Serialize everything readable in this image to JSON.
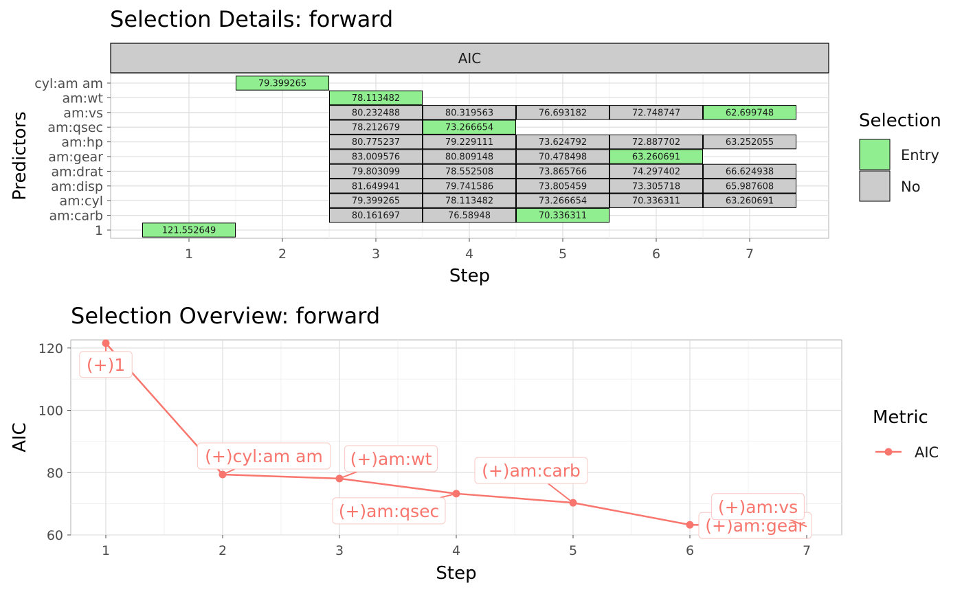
{
  "chart_data": [
    {
      "type": "heatmap",
      "title": "Selection Details: forward",
      "facet_label": "AIC",
      "xlabel": "Step",
      "ylabel": "Predictors",
      "x_ticks": [
        "1",
        "2",
        "3",
        "4",
        "5",
        "6",
        "7"
      ],
      "y_categories": [
        "1",
        "am:carb",
        "am:cyl",
        "am:disp",
        "am:drat",
        "am:gear",
        "am:hp",
        "am:qsec",
        "am:vs",
        "am:wt",
        "cyl:am am"
      ],
      "legend": {
        "title": "Selection",
        "entries": [
          {
            "label": "Entry",
            "color": "#90ee90"
          },
          {
            "label": "No",
            "color": "#cccccc"
          }
        ]
      },
      "tiles": [
        {
          "step": 1,
          "predictor": "1",
          "label": "121.552649",
          "status": "Entry"
        },
        {
          "step": 2,
          "predictor": "cyl:am am",
          "label": "79.399265",
          "status": "Entry"
        },
        {
          "step": 3,
          "predictor": "am:wt",
          "label": "78.113482",
          "status": "Entry"
        },
        {
          "step": 3,
          "predictor": "am:vs",
          "label": "80.232488",
          "status": "No"
        },
        {
          "step": 3,
          "predictor": "am:qsec",
          "label": "78.212679",
          "status": "No"
        },
        {
          "step": 3,
          "predictor": "am:hp",
          "label": "80.775237",
          "status": "No"
        },
        {
          "step": 3,
          "predictor": "am:gear",
          "label": "83.009576",
          "status": "No"
        },
        {
          "step": 3,
          "predictor": "am:drat",
          "label": "79.803099",
          "status": "No"
        },
        {
          "step": 3,
          "predictor": "am:disp",
          "label": "81.649941",
          "status": "No"
        },
        {
          "step": 3,
          "predictor": "am:cyl",
          "label": "79.399265",
          "status": "No"
        },
        {
          "step": 3,
          "predictor": "am:carb",
          "label": "80.161697",
          "status": "No"
        },
        {
          "step": 4,
          "predictor": "am:vs",
          "label": "80.319563",
          "status": "No"
        },
        {
          "step": 4,
          "predictor": "am:qsec",
          "label": "73.266654",
          "status": "Entry"
        },
        {
          "step": 4,
          "predictor": "am:hp",
          "label": "79.229111",
          "status": "No"
        },
        {
          "step": 4,
          "predictor": "am:gear",
          "label": "80.809148",
          "status": "No"
        },
        {
          "step": 4,
          "predictor": "am:drat",
          "label": "78.552508",
          "status": "No"
        },
        {
          "step": 4,
          "predictor": "am:disp",
          "label": "79.741586",
          "status": "No"
        },
        {
          "step": 4,
          "predictor": "am:cyl",
          "label": "78.113482",
          "status": "No"
        },
        {
          "step": 4,
          "predictor": "am:carb",
          "label": "76.58948",
          "status": "No"
        },
        {
          "step": 5,
          "predictor": "am:vs",
          "label": "76.693182",
          "status": "No"
        },
        {
          "step": 5,
          "predictor": "am:hp",
          "label": "73.624792",
          "status": "No"
        },
        {
          "step": 5,
          "predictor": "am:gear",
          "label": "70.478498",
          "status": "No"
        },
        {
          "step": 5,
          "predictor": "am:drat",
          "label": "73.865766",
          "status": "No"
        },
        {
          "step": 5,
          "predictor": "am:disp",
          "label": "73.805459",
          "status": "No"
        },
        {
          "step": 5,
          "predictor": "am:cyl",
          "label": "73.266654",
          "status": "No"
        },
        {
          "step": 5,
          "predictor": "am:carb",
          "label": "70.336311",
          "status": "Entry"
        },
        {
          "step": 6,
          "predictor": "am:vs",
          "label": "72.748747",
          "status": "No"
        },
        {
          "step": 6,
          "predictor": "am:hp",
          "label": "72.887702",
          "status": "No"
        },
        {
          "step": 6,
          "predictor": "am:gear",
          "label": "63.260691",
          "status": "Entry"
        },
        {
          "step": 6,
          "predictor": "am:drat",
          "label": "74.297402",
          "status": "No"
        },
        {
          "step": 6,
          "predictor": "am:disp",
          "label": "73.305718",
          "status": "No"
        },
        {
          "step": 6,
          "predictor": "am:cyl",
          "label": "70.336311",
          "status": "No"
        },
        {
          "step": 7,
          "predictor": "am:vs",
          "label": "62.699748",
          "status": "Entry"
        },
        {
          "step": 7,
          "predictor": "am:hp",
          "label": "63.252055",
          "status": "No"
        },
        {
          "step": 7,
          "predictor": "am:drat",
          "label": "66.624938",
          "status": "No"
        },
        {
          "step": 7,
          "predictor": "am:disp",
          "label": "65.987608",
          "status": "No"
        },
        {
          "step": 7,
          "predictor": "am:cyl",
          "label": "63.260691",
          "status": "No"
        }
      ]
    },
    {
      "type": "line",
      "title": "Selection Overview: forward",
      "xlabel": "Step",
      "ylabel": "AIC",
      "x": [
        1,
        2,
        3,
        4,
        5,
        6,
        7
      ],
      "x_ticks": [
        1,
        2,
        3,
        4,
        5,
        6,
        7
      ],
      "y_ticks": [
        60,
        80,
        100,
        120
      ],
      "xlim": [
        0.7,
        7.3
      ],
      "ylim": [
        60,
        122.6
      ],
      "series": [
        {
          "name": "AIC",
          "color": "#f8766d",
          "values": [
            121.552649,
            79.399265,
            78.113482,
            73.266654,
            70.336311,
            63.260691,
            62.699748
          ],
          "point_labels": [
            "(+)1",
            "(+)cyl:am am",
            "(+)am:wt",
            "(+)am:qsec",
            "(+)am:carb",
            "(+)am:gear",
            "(+)am:vs"
          ]
        }
      ],
      "legend": {
        "title": "Metric",
        "entries": [
          {
            "label": "AIC",
            "color": "#f8766d"
          }
        ]
      }
    }
  ]
}
